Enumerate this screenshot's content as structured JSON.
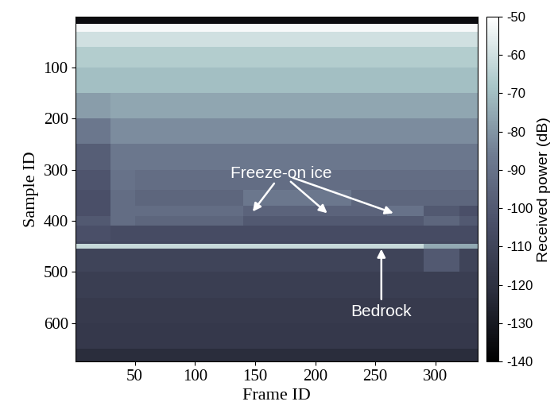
{
  "chart_data": {
    "type": "heatmap",
    "x_label": "Frame ID",
    "y_label": "Sample ID",
    "xlim": [
      1,
      335
    ],
    "ylim": [
      675,
      1
    ],
    "xticks": [
      50,
      100,
      150,
      200,
      250,
      300
    ],
    "yticks": [
      100,
      200,
      300,
      400,
      500,
      600
    ],
    "x_edges": [
      1,
      30,
      50,
      80,
      110,
      140,
      170,
      200,
      230,
      260,
      290,
      320,
      335
    ],
    "y_edges": [
      1,
      15,
      30,
      60,
      100,
      150,
      200,
      250,
      300,
      340,
      370,
      390,
      410,
      440,
      445,
      455,
      500,
      550,
      600,
      650,
      675
    ],
    "cells": [
      [
        -135,
        -135,
        -135,
        -135,
        -135,
        -135,
        -135,
        -135,
        -135,
        -135,
        -135,
        -135
      ],
      [
        -52,
        -52,
        -52,
        -52,
        -52,
        -52,
        -52,
        -52,
        -52,
        -52,
        -52,
        -52
      ],
      [
        -60,
        -60,
        -60,
        -60,
        -60,
        -60,
        -60,
        -60,
        -60,
        -60,
        -60,
        -60
      ],
      [
        -66,
        -66,
        -66,
        -66,
        -66,
        -66,
        -66,
        -66,
        -66,
        -66,
        -66,
        -66
      ],
      [
        -70,
        -70,
        -70,
        -70,
        -70,
        -70,
        -70,
        -70,
        -70,
        -70,
        -70,
        -70
      ],
      [
        -78,
        -76,
        -76,
        -76,
        -76,
        -76,
        -76,
        -76,
        -76,
        -76,
        -76,
        -76
      ],
      [
        -88,
        -82,
        -82,
        -82,
        -82,
        -82,
        -82,
        -82,
        -82,
        -82,
        -82,
        -82
      ],
      [
        -98,
        -88,
        -88,
        -88,
        -88,
        -88,
        -88,
        -88,
        -88,
        -88,
        -88,
        -88
      ],
      [
        -102,
        -90,
        -92,
        -92,
        -92,
        -92,
        -92,
        -92,
        -92,
        -92,
        -92,
        -92
      ],
      [
        -104,
        -92,
        -95,
        -95,
        -95,
        -88,
        -88,
        -88,
        -95,
        -95,
        -95,
        -95
      ],
      [
        -104,
        -92,
        -92,
        -92,
        -92,
        -96,
        -96,
        -96,
        -96,
        -90,
        -100,
        -104
      ],
      [
        -100,
        -92,
        -95,
        -95,
        -95,
        -100,
        -100,
        -100,
        -100,
        -100,
        -95,
        -100
      ],
      [
        -104,
        -106,
        -106,
        -106,
        -106,
        -106,
        -106,
        -106,
        -106,
        -106,
        -106,
        -106
      ],
      [
        -108,
        -108,
        -108,
        -108,
        -108,
        -108,
        -108,
        -108,
        -108,
        -108,
        -108,
        -108
      ],
      [
        -62,
        -62,
        -62,
        -62,
        -62,
        -62,
        -62,
        -62,
        -62,
        -62,
        -75,
        -75
      ],
      [
        -110,
        -110,
        -110,
        -110,
        -110,
        -110,
        -110,
        -110,
        -110,
        -110,
        -100,
        -110
      ],
      [
        -113,
        -113,
        -113,
        -113,
        -113,
        -113,
        -113,
        -113,
        -113,
        -113,
        -113,
        -113
      ],
      [
        -115,
        -115,
        -115,
        -115,
        -115,
        -115,
        -115,
        -115,
        -115,
        -115,
        -115,
        -115
      ],
      [
        -116,
        -116,
        -116,
        -116,
        -116,
        -116,
        -116,
        -116,
        -116,
        -116,
        -116,
        -116
      ],
      [
        -122,
        -122,
        -122,
        -122,
        -122,
        -122,
        -122,
        -122,
        -122,
        -122,
        -122,
        -122
      ]
    ],
    "colorbar": {
      "label": "Received power (dB)",
      "lim": [
        -140,
        -50
      ],
      "ticks": [
        -50,
        -60,
        -70,
        -80,
        -90,
        -100,
        -110,
        -120,
        -130,
        -140
      ]
    },
    "annotations": [
      {
        "text": "Freeze-on ice",
        "x": 172,
        "y": 308,
        "targets": [
          [
            148,
            382
          ],
          [
            210,
            385
          ],
          [
            265,
            385
          ]
        ]
      },
      {
        "text": "Bedrock",
        "x": 255,
        "y": 577,
        "targets": [
          [
            255,
            455
          ]
        ]
      }
    ]
  }
}
